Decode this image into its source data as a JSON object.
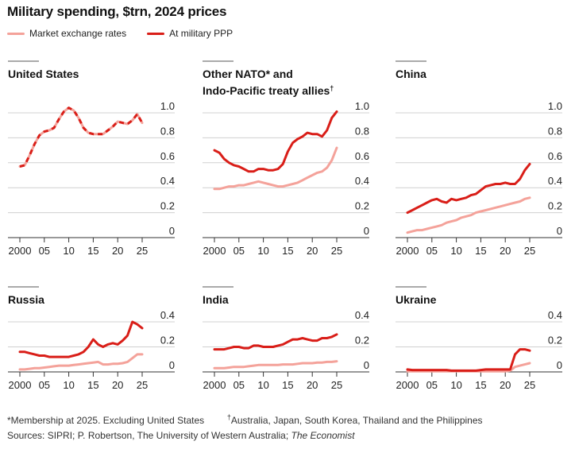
{
  "header": {
    "title": "Military spending, $trn, 2024 prices"
  },
  "legend": {
    "market_label": "Market exchange rates",
    "ppp_label": "At military PPP"
  },
  "colors": {
    "market": "#f4a29a",
    "ppp": "#d91e18",
    "axis": "#333333",
    "grid": "#d0d0d0"
  },
  "footnotes": {
    "membership": "*Membership at 2025. Excluding United States",
    "dagger_mark": "†",
    "dagger_text": "Australia, Japan, South Korea, Thailand and the Philippines",
    "sources": "Sources: SIPRI; P. Robertson, The University of Western Australia; ",
    "sources_italic": "The Economist"
  },
  "chart_data": [
    {
      "type": "line",
      "title": "United States",
      "title_line2": "",
      "ylim": [
        0,
        1.0
      ],
      "yticks": [
        "0",
        "0.2",
        "0.4",
        "0.6",
        "0.8",
        "1.0"
      ],
      "ytick_values": [
        0,
        0.2,
        0.4,
        0.6,
        0.8,
        1.0
      ],
      "xticks": [
        "2000",
        "05",
        "10",
        "15",
        "20",
        "25"
      ],
      "xtick_values": [
        2000,
        2005,
        2010,
        2015,
        2020,
        2025
      ],
      "xlim": [
        2000,
        2025
      ],
      "overlap": true,
      "series": [
        {
          "name": "Market exchange rates",
          "style": "market",
          "x": [
            2000,
            2001,
            2002,
            2003,
            2004,
            2005,
            2006,
            2007,
            2008,
            2009,
            2010,
            2011,
            2012,
            2013,
            2014,
            2015,
            2016,
            2017,
            2018,
            2019,
            2020,
            2021,
            2022,
            2023,
            2024,
            2025
          ],
          "values": [
            0.57,
            0.58,
            0.66,
            0.75,
            0.82,
            0.85,
            0.86,
            0.88,
            0.95,
            1.01,
            1.04,
            1.02,
            0.96,
            0.88,
            0.84,
            0.83,
            0.83,
            0.83,
            0.86,
            0.89,
            0.93,
            0.92,
            0.91,
            0.94,
            0.99,
            0.92
          ]
        },
        {
          "name": "At military PPP",
          "style": "ppp",
          "x": [
            2000,
            2001,
            2002,
            2003,
            2004,
            2005,
            2006,
            2007,
            2008,
            2009,
            2010,
            2011,
            2012,
            2013,
            2014,
            2015,
            2016,
            2017,
            2018,
            2019,
            2020,
            2021,
            2022,
            2023,
            2024,
            2025
          ],
          "values": [
            0.57,
            0.58,
            0.66,
            0.75,
            0.82,
            0.85,
            0.86,
            0.88,
            0.95,
            1.01,
            1.04,
            1.02,
            0.96,
            0.88,
            0.84,
            0.83,
            0.83,
            0.83,
            0.86,
            0.89,
            0.93,
            0.92,
            0.91,
            0.94,
            0.99,
            0.92
          ]
        }
      ]
    },
    {
      "type": "line",
      "title": "Other NATO* and",
      "title_line2": "Indo-Pacific treaty allies",
      "title_dagger": "†",
      "ylim": [
        0,
        1.0
      ],
      "yticks": [
        "0",
        "0.2",
        "0.4",
        "0.6",
        "0.8",
        "1.0"
      ],
      "ytick_values": [
        0,
        0.2,
        0.4,
        0.6,
        0.8,
        1.0
      ],
      "xticks": [
        "2000",
        "05",
        "10",
        "15",
        "20",
        "25"
      ],
      "xtick_values": [
        2000,
        2005,
        2010,
        2015,
        2020,
        2025
      ],
      "xlim": [
        2000,
        2025
      ],
      "series": [
        {
          "name": "Market exchange rates",
          "style": "market",
          "x": [
            2000,
            2001,
            2002,
            2003,
            2004,
            2005,
            2006,
            2007,
            2008,
            2009,
            2010,
            2011,
            2012,
            2013,
            2014,
            2015,
            2016,
            2017,
            2018,
            2019,
            2020,
            2021,
            2022,
            2023,
            2024,
            2025
          ],
          "values": [
            0.39,
            0.39,
            0.4,
            0.41,
            0.41,
            0.42,
            0.42,
            0.43,
            0.44,
            0.45,
            0.44,
            0.43,
            0.42,
            0.41,
            0.41,
            0.42,
            0.43,
            0.44,
            0.46,
            0.48,
            0.5,
            0.52,
            0.53,
            0.56,
            0.62,
            0.72
          ]
        },
        {
          "name": "At military PPP",
          "style": "ppp",
          "x": [
            2000,
            2001,
            2002,
            2003,
            2004,
            2005,
            2006,
            2007,
            2008,
            2009,
            2010,
            2011,
            2012,
            2013,
            2014,
            2015,
            2016,
            2017,
            2018,
            2019,
            2020,
            2021,
            2022,
            2023,
            2024,
            2025
          ],
          "values": [
            0.7,
            0.68,
            0.63,
            0.6,
            0.58,
            0.57,
            0.55,
            0.53,
            0.53,
            0.55,
            0.55,
            0.54,
            0.54,
            0.55,
            0.59,
            0.69,
            0.76,
            0.79,
            0.81,
            0.84,
            0.83,
            0.83,
            0.81,
            0.86,
            0.96,
            1.01
          ]
        }
      ]
    },
    {
      "type": "line",
      "title": "China",
      "title_line2": "",
      "ylim": [
        0,
        1.0
      ],
      "yticks": [
        "0",
        "0.2",
        "0.4",
        "0.6",
        "0.8",
        "1.0"
      ],
      "ytick_values": [
        0,
        0.2,
        0.4,
        0.6,
        0.8,
        1.0
      ],
      "xticks": [
        "2000",
        "05",
        "10",
        "15",
        "20",
        "25"
      ],
      "xtick_values": [
        2000,
        2005,
        2010,
        2015,
        2020,
        2025
      ],
      "xlim": [
        2000,
        2025
      ],
      "series": [
        {
          "name": "Market exchange rates",
          "style": "market",
          "x": [
            2000,
            2001,
            2002,
            2003,
            2004,
            2005,
            2006,
            2007,
            2008,
            2009,
            2010,
            2011,
            2012,
            2013,
            2014,
            2015,
            2016,
            2017,
            2018,
            2019,
            2020,
            2021,
            2022,
            2023,
            2024,
            2025
          ],
          "values": [
            0.04,
            0.05,
            0.06,
            0.06,
            0.07,
            0.08,
            0.09,
            0.1,
            0.12,
            0.13,
            0.14,
            0.16,
            0.17,
            0.18,
            0.2,
            0.21,
            0.22,
            0.23,
            0.24,
            0.25,
            0.26,
            0.27,
            0.28,
            0.29,
            0.31,
            0.32
          ]
        },
        {
          "name": "At military PPP",
          "style": "ppp",
          "x": [
            2000,
            2001,
            2002,
            2003,
            2004,
            2005,
            2006,
            2007,
            2008,
            2009,
            2010,
            2011,
            2012,
            2013,
            2014,
            2015,
            2016,
            2017,
            2018,
            2019,
            2020,
            2021,
            2022,
            2023,
            2024,
            2025
          ],
          "values": [
            0.2,
            0.22,
            0.24,
            0.26,
            0.28,
            0.3,
            0.31,
            0.29,
            0.28,
            0.31,
            0.3,
            0.31,
            0.32,
            0.34,
            0.35,
            0.38,
            0.41,
            0.42,
            0.43,
            0.43,
            0.44,
            0.43,
            0.43,
            0.47,
            0.54,
            0.59
          ]
        }
      ]
    },
    {
      "type": "line",
      "title": "Russia",
      "title_line2": "",
      "ylim": [
        0,
        0.4
      ],
      "yticks": [
        "0",
        "0.2",
        "0.4"
      ],
      "ytick_values": [
        0,
        0.2,
        0.4
      ],
      "xticks": [
        "2000",
        "05",
        "10",
        "15",
        "20",
        "25"
      ],
      "xtick_values": [
        2000,
        2005,
        2010,
        2015,
        2020,
        2025
      ],
      "xlim": [
        2000,
        2025
      ],
      "series": [
        {
          "name": "Market exchange rates",
          "style": "market",
          "x": [
            2000,
            2001,
            2002,
            2003,
            2004,
            2005,
            2006,
            2007,
            2008,
            2009,
            2010,
            2011,
            2012,
            2013,
            2014,
            2015,
            2016,
            2017,
            2018,
            2019,
            2020,
            2021,
            2022,
            2023,
            2024,
            2025
          ],
          "values": [
            0.02,
            0.02,
            0.025,
            0.03,
            0.03,
            0.035,
            0.04,
            0.045,
            0.05,
            0.05,
            0.05,
            0.055,
            0.06,
            0.065,
            0.07,
            0.075,
            0.08,
            0.06,
            0.06,
            0.065,
            0.065,
            0.07,
            0.08,
            0.11,
            0.14,
            0.14
          ]
        },
        {
          "name": "At military PPP",
          "style": "ppp",
          "x": [
            2000,
            2001,
            2002,
            2003,
            2004,
            2005,
            2006,
            2007,
            2008,
            2009,
            2010,
            2011,
            2012,
            2013,
            2014,
            2015,
            2016,
            2017,
            2018,
            2019,
            2020,
            2021,
            2022,
            2023,
            2024,
            2025
          ],
          "values": [
            0.16,
            0.16,
            0.15,
            0.14,
            0.13,
            0.13,
            0.12,
            0.12,
            0.12,
            0.12,
            0.12,
            0.13,
            0.14,
            0.16,
            0.2,
            0.26,
            0.22,
            0.2,
            0.22,
            0.23,
            0.22,
            0.25,
            0.29,
            0.4,
            0.38,
            0.35
          ]
        }
      ]
    },
    {
      "type": "line",
      "title": "India",
      "title_line2": "",
      "ylim": [
        0,
        0.4
      ],
      "yticks": [
        "0",
        "0.2",
        "0.4"
      ],
      "ytick_values": [
        0,
        0.2,
        0.4
      ],
      "xticks": [
        "2000",
        "05",
        "10",
        "15",
        "20",
        "25"
      ],
      "xtick_values": [
        2000,
        2005,
        2010,
        2015,
        2020,
        2025
      ],
      "xlim": [
        2000,
        2025
      ],
      "series": [
        {
          "name": "Market exchange rates",
          "style": "market",
          "x": [
            2000,
            2001,
            2002,
            2003,
            2004,
            2005,
            2006,
            2007,
            2008,
            2009,
            2010,
            2011,
            2012,
            2013,
            2014,
            2015,
            2016,
            2017,
            2018,
            2019,
            2020,
            2021,
            2022,
            2023,
            2024,
            2025
          ],
          "values": [
            0.03,
            0.03,
            0.03,
            0.035,
            0.04,
            0.04,
            0.04,
            0.045,
            0.05,
            0.055,
            0.055,
            0.055,
            0.055,
            0.055,
            0.06,
            0.06,
            0.06,
            0.065,
            0.07,
            0.07,
            0.07,
            0.075,
            0.075,
            0.08,
            0.08,
            0.085
          ]
        },
        {
          "name": "At military PPP",
          "style": "ppp",
          "x": [
            2000,
            2001,
            2002,
            2003,
            2004,
            2005,
            2006,
            2007,
            2008,
            2009,
            2010,
            2011,
            2012,
            2013,
            2014,
            2015,
            2016,
            2017,
            2018,
            2019,
            2020,
            2021,
            2022,
            2023,
            2024,
            2025
          ],
          "values": [
            0.18,
            0.18,
            0.18,
            0.19,
            0.2,
            0.2,
            0.19,
            0.19,
            0.21,
            0.21,
            0.2,
            0.2,
            0.2,
            0.21,
            0.22,
            0.24,
            0.26,
            0.26,
            0.27,
            0.26,
            0.25,
            0.25,
            0.27,
            0.27,
            0.28,
            0.3
          ]
        }
      ]
    },
    {
      "type": "line",
      "title": "Ukraine",
      "title_line2": "",
      "ylim": [
        0,
        0.4
      ],
      "yticks": [
        "0",
        "0.2",
        "0.4"
      ],
      "ytick_values": [
        0,
        0.2,
        0.4
      ],
      "xticks": [
        "2000",
        "05",
        "10",
        "15",
        "20",
        "25"
      ],
      "xtick_values": [
        2000,
        2005,
        2010,
        2015,
        2020,
        2025
      ],
      "xlim": [
        2000,
        2025
      ],
      "series": [
        {
          "name": "Market exchange rates",
          "style": "market",
          "x": [
            2000,
            2001,
            2002,
            2003,
            2004,
            2005,
            2006,
            2007,
            2008,
            2009,
            2010,
            2011,
            2012,
            2013,
            2014,
            2015,
            2016,
            2017,
            2018,
            2019,
            2020,
            2021,
            2022,
            2023,
            2024,
            2025
          ],
          "values": [
            0.005,
            0.005,
            0.005,
            0.005,
            0.005,
            0.005,
            0.005,
            0.005,
            0.005,
            0.005,
            0.005,
            0.005,
            0.005,
            0.005,
            0.005,
            0.005,
            0.005,
            0.005,
            0.005,
            0.005,
            0.005,
            0.01,
            0.04,
            0.05,
            0.06,
            0.07
          ]
        },
        {
          "name": "At military PPP",
          "style": "ppp",
          "x": [
            2000,
            2001,
            2002,
            2003,
            2004,
            2005,
            2006,
            2007,
            2008,
            2009,
            2010,
            2011,
            2012,
            2013,
            2014,
            2015,
            2016,
            2017,
            2018,
            2019,
            2020,
            2021,
            2022,
            2023,
            2024,
            2025
          ],
          "values": [
            0.02,
            0.015,
            0.015,
            0.015,
            0.015,
            0.015,
            0.015,
            0.015,
            0.015,
            0.01,
            0.01,
            0.01,
            0.01,
            0.01,
            0.01,
            0.015,
            0.02,
            0.02,
            0.02,
            0.02,
            0.02,
            0.02,
            0.14,
            0.18,
            0.18,
            0.17
          ]
        }
      ]
    }
  ]
}
